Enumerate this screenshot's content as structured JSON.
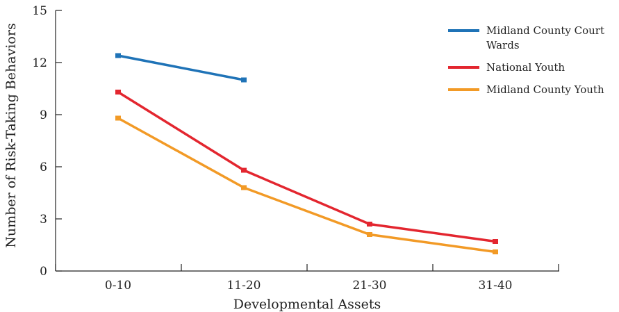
{
  "chart_data": {
    "type": "line",
    "title": "",
    "xlabel": "Developmental Assets",
    "ylabel": "Number of Risk-Taking Behaviors",
    "categories": [
      "0-10",
      "11-20",
      "21-30",
      "31-40"
    ],
    "ylim": [
      0,
      15
    ],
    "yticks": [
      0,
      3,
      6,
      9,
      12,
      15
    ],
    "grid": false,
    "legend_position": "top-right",
    "series": [
      {
        "name": "Midland County Court Wards",
        "name_lines": [
          "Midland County Court",
          "Wards"
        ],
        "color": "#1f73b7",
        "values": [
          12.4,
          11.0,
          null,
          null
        ]
      },
      {
        "name": "National Youth",
        "name_lines": [
          "National Youth"
        ],
        "color": "#e3262f",
        "values": [
          10.3,
          5.8,
          2.7,
          1.7
        ]
      },
      {
        "name": "Midland County Youth",
        "name_lines": [
          "Midland County Youth"
        ],
        "color": "#f29a26",
        "values": [
          8.8,
          4.8,
          2.1,
          1.1
        ]
      }
    ]
  }
}
